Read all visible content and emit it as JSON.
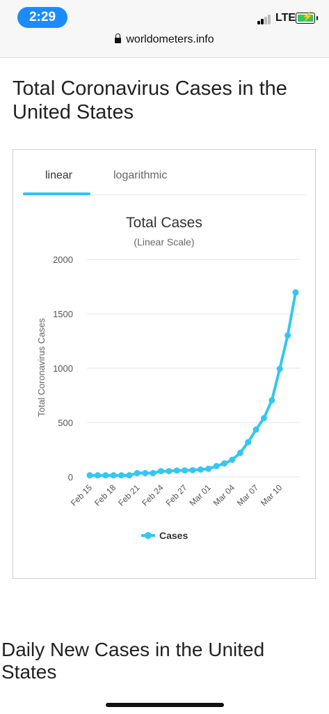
{
  "status_bar": {
    "time": "2:29",
    "network": "LTE",
    "url": "worldometers.info"
  },
  "page": {
    "title": "Total Coronavirus Cases in the United States",
    "next_section_title": "Daily New Cases in the United States"
  },
  "tabs": [
    {
      "label": "linear",
      "active": true
    },
    {
      "label": "logarithmic",
      "active": false
    }
  ],
  "colors": {
    "series": "#33c7f2",
    "time_pill": "#1a8cff"
  },
  "chart_data": {
    "type": "line",
    "title": "Total Cases",
    "subtitle": "(Linear Scale)",
    "ylabel": "Total Coronavirus Cases",
    "xlabel": "",
    "ylim": [
      0,
      2000
    ],
    "yticks": [
      0,
      500,
      1000,
      1500,
      2000
    ],
    "x": [
      "Feb 15",
      "Feb 16",
      "Feb 17",
      "Feb 18",
      "Feb 19",
      "Feb 20",
      "Feb 21",
      "Feb 22",
      "Feb 23",
      "Feb 24",
      "Feb 25",
      "Feb 26",
      "Feb 27",
      "Feb 28",
      "Feb 29",
      "Mar 01",
      "Mar 02",
      "Mar 03",
      "Mar 04",
      "Mar 05",
      "Mar 06",
      "Mar 07",
      "Mar 08",
      "Mar 09",
      "Mar 10",
      "Mar 11",
      "Mar 12"
    ],
    "xtick_labels": [
      "Feb 15",
      "Feb 18",
      "Feb 21",
      "Feb 24",
      "Feb 27",
      "Mar 01",
      "Mar 04",
      "Mar 07",
      "Mar 10"
    ],
    "series": [
      {
        "name": "Cases",
        "values": [
          15,
          15,
          15,
          15,
          15,
          15,
          35,
          35,
          35,
          53,
          53,
          59,
          60,
          62,
          68,
          75,
          100,
          124,
          158,
          221,
          319,
          435,
          541,
          704,
          994,
          1301,
          1697
        ]
      }
    ],
    "legend": "bottom",
    "grid": true
  }
}
